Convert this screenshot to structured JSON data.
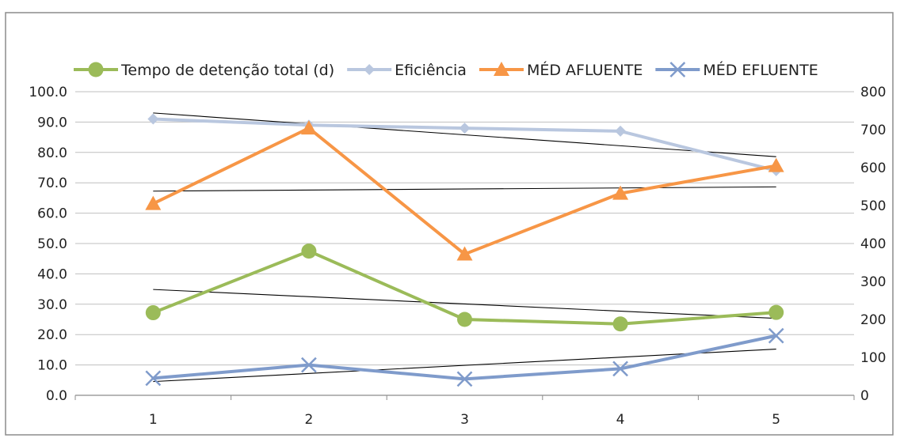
{
  "chart_data": {
    "type": "line",
    "categories": [
      "1",
      "2",
      "3",
      "4",
      "5"
    ],
    "y_left": {
      "min": 0,
      "max": 100,
      "step": 10,
      "tick_labels": [
        "0.0",
        "10.0",
        "20.0",
        "30.0",
        "40.0",
        "50.0",
        "60.0",
        "70.0",
        "80.0",
        "90.0",
        "100.0"
      ]
    },
    "y_right": {
      "min": 0,
      "max": 800,
      "step": 100,
      "tick_labels": [
        "0",
        "100",
        "200",
        "300",
        "400",
        "500",
        "600",
        "700",
        "800"
      ]
    },
    "grid": true,
    "legend_position": "top",
    "series": [
      {
        "name": "Tempo de detenção total (d)",
        "axis": "left",
        "color": "#9bbb59",
        "marker": "circle",
        "values": [
          27.2,
          47.5,
          25.0,
          23.5,
          27.3
        ],
        "trendline": true
      },
      {
        "name": "Eficiência",
        "axis": "left",
        "color": "#b9c7df",
        "marker": "diamond",
        "values": [
          91.0,
          89.0,
          88.0,
          87.0,
          74.0
        ],
        "trendline": true
      },
      {
        "name": "MÉD AFLUENTE",
        "axis": "right",
        "color": "#f79646",
        "marker": "triangle",
        "values": [
          505,
          704,
          372,
          532,
          605
        ],
        "trendline": true
      },
      {
        "name": "MÉD EFLUENTE",
        "axis": "right",
        "color": "#7f9bcb",
        "marker": "x",
        "values": [
          45,
          80,
          43,
          70,
          157
        ],
        "trendline": true
      }
    ]
  }
}
